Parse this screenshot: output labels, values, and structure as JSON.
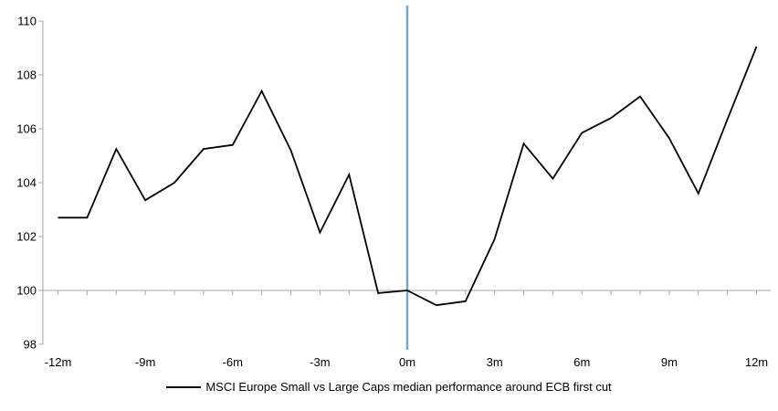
{
  "chart_data": {
    "type": "line",
    "title": "",
    "xlabel": "",
    "ylabel": "",
    "grid": false,
    "legend_position": "bottom",
    "background": "#FFFFFF",
    "axis_color": "#A6A6A6",
    "ylim": [
      98,
      110
    ],
    "yticks": [
      110,
      108,
      106,
      104,
      102,
      100,
      98
    ],
    "x_axis_position_value": 100,
    "x_months": [
      -12,
      -11,
      -10,
      -9,
      -8,
      -7,
      -6,
      -5,
      -4,
      -3,
      -2,
      -1,
      0,
      1,
      2,
      3,
      4,
      5,
      6,
      7,
      8,
      9,
      10,
      11,
      12
    ],
    "xtick_labels": [
      "-12m",
      "-9m",
      "-6m",
      "-3m",
      "0m",
      "3m",
      "6m",
      "9m",
      "12m"
    ],
    "xtick_months": [
      -12,
      -9,
      -6,
      -3,
      0,
      3,
      6,
      9,
      12
    ],
    "series": [
      {
        "name": "MSCI Europe Small vs Large Caps median performance around ECB first cut",
        "color": "#000000",
        "values": [
          102.7,
          102.7,
          105.25,
          103.35,
          104.0,
          105.25,
          105.4,
          107.4,
          105.2,
          102.15,
          104.3,
          99.9,
          100.0,
          99.45,
          99.6,
          101.9,
          105.45,
          104.15,
          105.85,
          106.4,
          107.2,
          105.65,
          103.6,
          106.35,
          109.05
        ]
      }
    ],
    "event_line": {
      "x_month": 0,
      "color": "#7CA5CC"
    }
  }
}
